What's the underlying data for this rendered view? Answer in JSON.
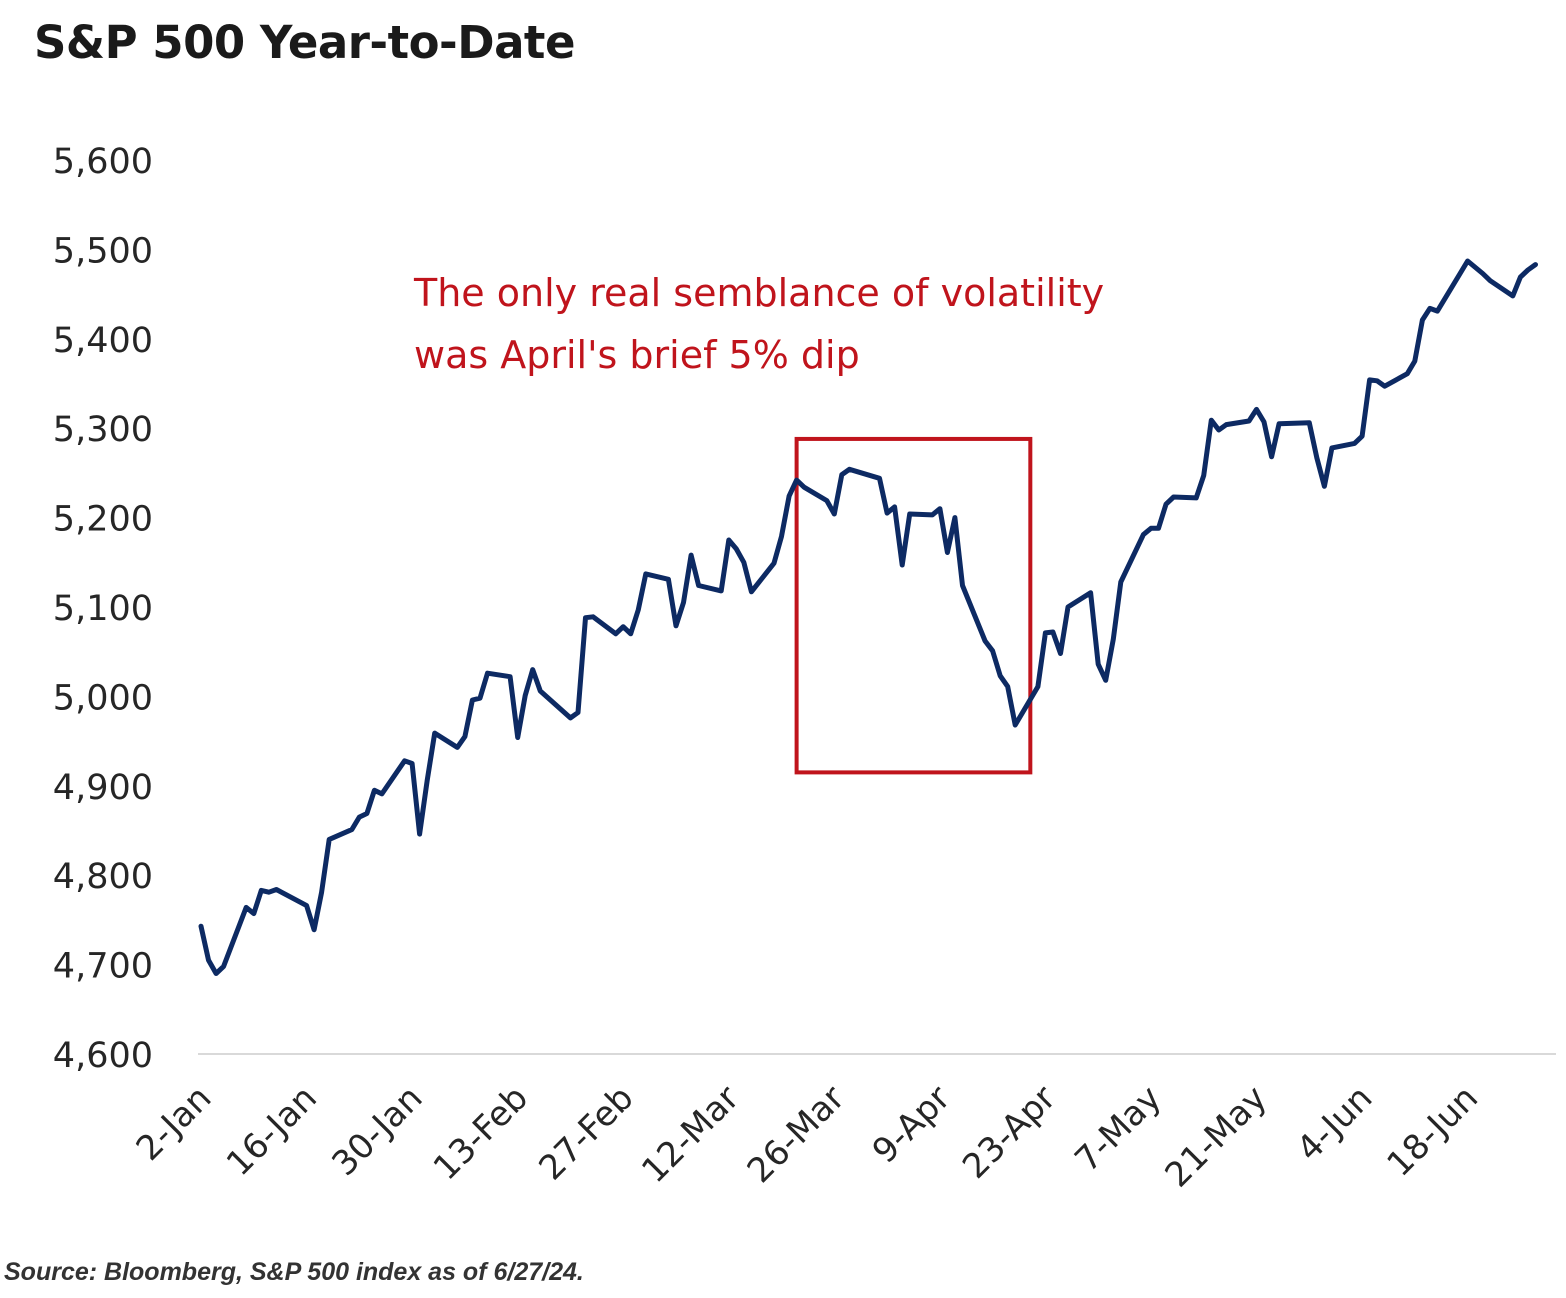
{
  "title": "S&P 500 Year-to-Date",
  "source": "Source: Bloomberg, S&P 500 index as of 6/27/24.",
  "annotation": {
    "line1": "The only real semblance of volatility",
    "line2": "was April's brief 5% dip"
  },
  "colors": {
    "line": "#0d2a63",
    "highlight": "#c0141c",
    "baseline": "#d9d9d9"
  },
  "chart_data": {
    "type": "line",
    "title": "S&P 500 Year-to-Date",
    "xlabel": "",
    "ylabel": "",
    "ylim": [
      4600,
      5600
    ],
    "yticks": [
      "5,600",
      "5,500",
      "5,400",
      "5,300",
      "5,200",
      "5,100",
      "5,000",
      "4,900",
      "4,800",
      "4,700",
      "4,600"
    ],
    "ytick_values": [
      5600,
      5500,
      5400,
      5300,
      5200,
      5100,
      5000,
      4900,
      4800,
      4700,
      4600
    ],
    "xticks": [
      "2-Jan",
      "16-Jan",
      "30-Jan",
      "13-Feb",
      "27-Feb",
      "12-Mar",
      "26-Mar",
      "9-Apr",
      "23-Apr",
      "7-May",
      "21-May",
      "4-Jun",
      "18-Jun"
    ],
    "xtick_dates": [
      "2024-01-02",
      "2024-01-16",
      "2024-01-30",
      "2024-02-13",
      "2024-02-27",
      "2024-03-12",
      "2024-03-26",
      "2024-04-09",
      "2024-04-23",
      "2024-05-07",
      "2024-05-21",
      "2024-06-04",
      "2024-06-18"
    ],
    "xlim": [
      "2024-01-02",
      "2024-06-28"
    ],
    "grid": false,
    "highlight_box": {
      "x_start": "2024-03-21",
      "x_end": "2024-04-21",
      "y_start": 4915,
      "y_end": 5288
    },
    "series": [
      {
        "dates": [
          "2024-01-02",
          "2024-01-03",
          "2024-01-04",
          "2024-01-05",
          "2024-01-08",
          "2024-01-09",
          "2024-01-10",
          "2024-01-11",
          "2024-01-12",
          "2024-01-16",
          "2024-01-17",
          "2024-01-18",
          "2024-01-19",
          "2024-01-22",
          "2024-01-23",
          "2024-01-24",
          "2024-01-25",
          "2024-01-26",
          "2024-01-29",
          "2024-01-30",
          "2024-01-31",
          "2024-02-01",
          "2024-02-02",
          "2024-02-05",
          "2024-02-06",
          "2024-02-07",
          "2024-02-08",
          "2024-02-09",
          "2024-02-12",
          "2024-02-13",
          "2024-02-14",
          "2024-02-15",
          "2024-02-16",
          "2024-02-20",
          "2024-02-21",
          "2024-02-22",
          "2024-02-23",
          "2024-02-26",
          "2024-02-27",
          "2024-02-28",
          "2024-02-29",
          "2024-03-01",
          "2024-03-04",
          "2024-03-05",
          "2024-03-06",
          "2024-03-07",
          "2024-03-08",
          "2024-03-11",
          "2024-03-12",
          "2024-03-13",
          "2024-03-14",
          "2024-03-15",
          "2024-03-18",
          "2024-03-19",
          "2024-03-20",
          "2024-03-21",
          "2024-03-22",
          "2024-03-25",
          "2024-03-26",
          "2024-03-27",
          "2024-03-28",
          "2024-04-01",
          "2024-04-02",
          "2024-04-03",
          "2024-04-04",
          "2024-04-05",
          "2024-04-08",
          "2024-04-09",
          "2024-04-10",
          "2024-04-11",
          "2024-04-12",
          "2024-04-15",
          "2024-04-16",
          "2024-04-17",
          "2024-04-18",
          "2024-04-19",
          "2024-04-22",
          "2024-04-23",
          "2024-04-24",
          "2024-04-25",
          "2024-04-26",
          "2024-04-29",
          "2024-04-30",
          "2024-05-01",
          "2024-05-02",
          "2024-05-03",
          "2024-05-06",
          "2024-05-07",
          "2024-05-08",
          "2024-05-09",
          "2024-05-10",
          "2024-05-13",
          "2024-05-14",
          "2024-05-15",
          "2024-05-16",
          "2024-05-17",
          "2024-05-20",
          "2024-05-21",
          "2024-05-22",
          "2024-05-23",
          "2024-05-24",
          "2024-05-28",
          "2024-05-29",
          "2024-05-30",
          "2024-05-31",
          "2024-06-03",
          "2024-06-04",
          "2024-06-05",
          "2024-06-06",
          "2024-06-07",
          "2024-06-10",
          "2024-06-11",
          "2024-06-12",
          "2024-06-13",
          "2024-06-14",
          "2024-06-17",
          "2024-06-18",
          "2024-06-20",
          "2024-06-21",
          "2024-06-24",
          "2024-06-25",
          "2024-06-26",
          "2024-06-27"
        ],
        "values": [
          4743,
          4705,
          4690,
          4698,
          4764,
          4757,
          4783,
          4781,
          4784,
          4766,
          4739,
          4781,
          4840,
          4851,
          4865,
          4869,
          4895,
          4891,
          4928,
          4925,
          4846,
          4906,
          4959,
          4943,
          4955,
          4996,
          4998,
          5026,
          5022,
          4954,
          5001,
          5030,
          5006,
          4976,
          4982,
          5088,
          5089,
          5070,
          5078,
          5070,
          5097,
          5137,
          5131,
          5079,
          5105,
          5158,
          5124,
          5118,
          5175,
          5165,
          5150,
          5117,
          5149,
          5179,
          5224,
          5242,
          5234,
          5219,
          5204,
          5248,
          5254,
          5244,
          5205,
          5212,
          5147,
          5204,
          5203,
          5210,
          5161,
          5200,
          5124,
          5062,
          5051,
          5023,
          5011,
          4968,
          5011,
          5071,
          5072,
          5048,
          5100,
          5116,
          5036,
          5018,
          5064,
          5128,
          5181,
          5188,
          5188,
          5215,
          5223,
          5222,
          5247,
          5309,
          5298,
          5304,
          5308,
          5321,
          5307,
          5268,
          5305,
          5306,
          5267,
          5235,
          5278,
          5283,
          5291,
          5354,
          5353,
          5347,
          5361,
          5375,
          5421,
          5434,
          5431,
          5473,
          5487,
          5473,
          5465,
          5448,
          5469,
          5477,
          5483
        ]
      }
    ]
  }
}
